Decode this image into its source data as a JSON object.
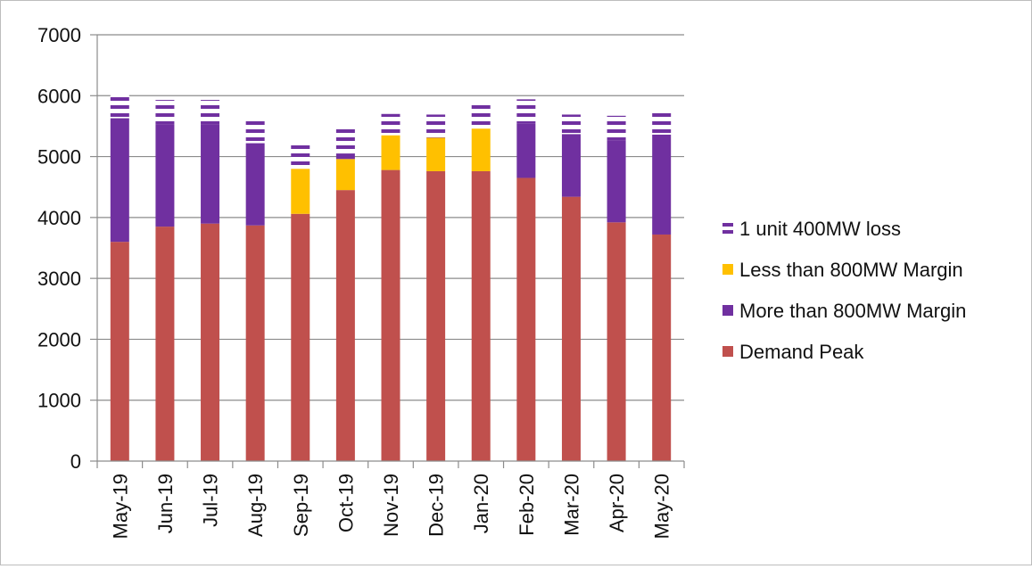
{
  "chart_data": {
    "type": "bar",
    "stacked": true,
    "title": "",
    "xlabel": "",
    "ylabel": "",
    "ylim": [
      0,
      7000
    ],
    "yticks": [
      0,
      1000,
      2000,
      3000,
      4000,
      5000,
      6000,
      7000
    ],
    "grid": "horizontal",
    "legend_position": "right",
    "categories": [
      "May-19",
      "Jun-19",
      "Jul-19",
      "Aug-19",
      "Sep-19",
      "Oct-19",
      "Nov-19",
      "Dec-19",
      "Jan-20",
      "Feb-20",
      "Mar-20",
      "Apr-20",
      "May-20"
    ],
    "series": [
      {
        "name": "Demand Peak",
        "color": "#c0504d",
        "pattern": "solid",
        "values": [
          3600,
          3850,
          3900,
          3870,
          4060,
          4450,
          4780,
          4760,
          4760,
          4650,
          4340,
          3920,
          3720
        ]
      },
      {
        "name": "Less than 800MW Margin",
        "color": "#ffc000",
        "pattern": "solid",
        "values": [
          0,
          0,
          0,
          0,
          740,
          510,
          570,
          550,
          700,
          0,
          0,
          0,
          0
        ]
      },
      {
        "name": "More than 800MW Margin",
        "color": "#7030a0",
        "pattern": "solid",
        "values": [
          2030,
          1680,
          1630,
          1350,
          0,
          90,
          0,
          0,
          0,
          890,
          1030,
          1350,
          1640
        ]
      },
      {
        "name": "1 unit 400MW loss",
        "color": "#7030a0",
        "pattern": "stripes",
        "values": [
          400,
          400,
          400,
          400,
          400,
          400,
          350,
          380,
          400,
          400,
          320,
          400,
          400
        ]
      }
    ],
    "legend_order": [
      "1 unit 400MW loss",
      "Less than 800MW Margin",
      "More than 800MW Margin",
      "Demand Peak"
    ]
  }
}
